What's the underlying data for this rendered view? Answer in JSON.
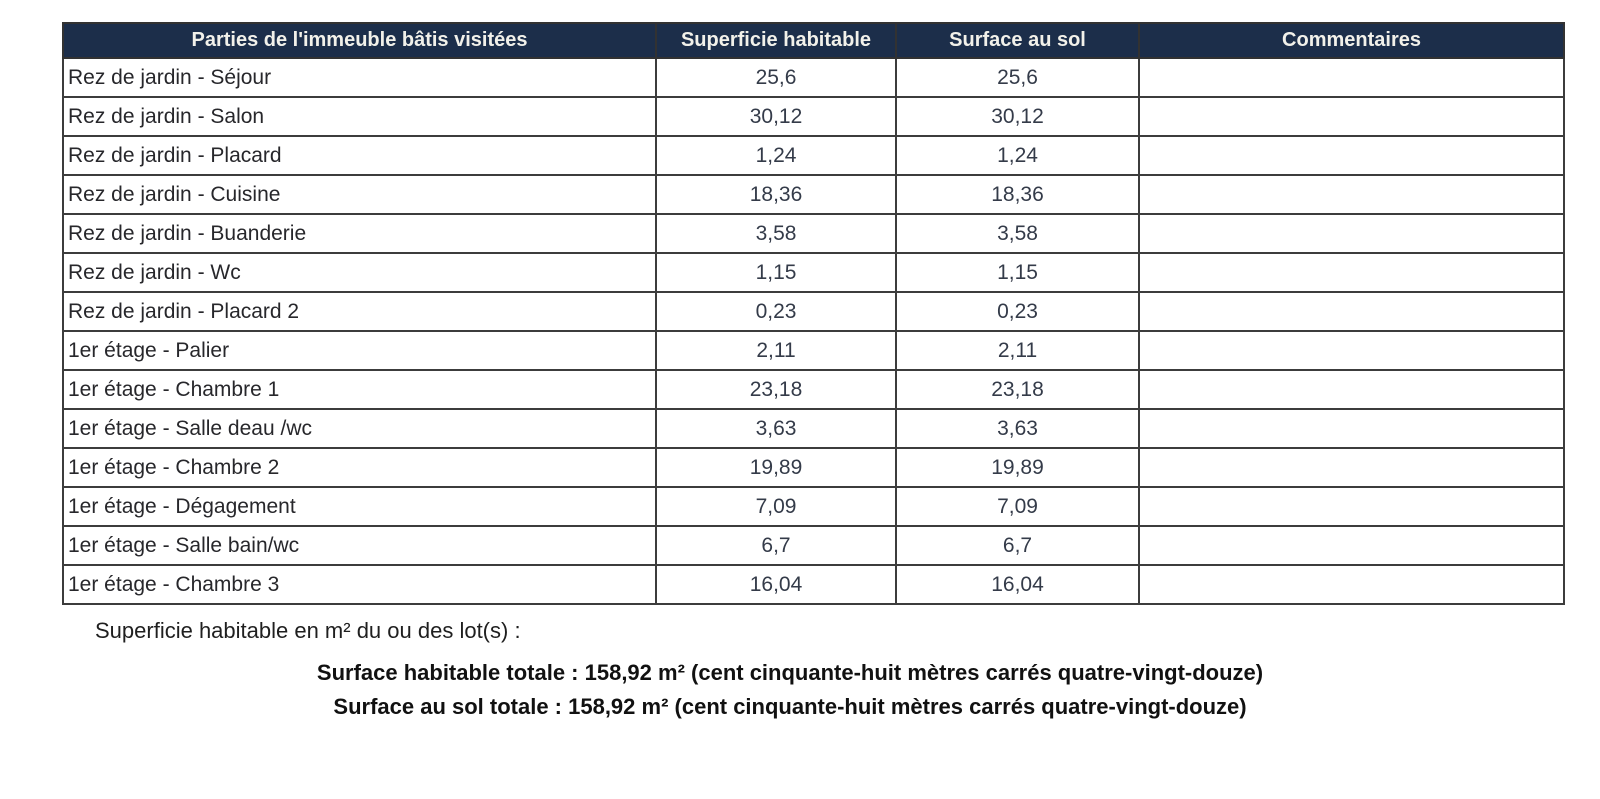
{
  "table": {
    "columns": [
      {
        "label": "Parties de l'immeuble bâtis visitées"
      },
      {
        "label": "Superficie habitable"
      },
      {
        "label": "Surface au sol"
      },
      {
        "label": "Commentaires"
      }
    ],
    "rows": [
      {
        "part": "Rez de jardin - Séjour",
        "superficie": "25,6",
        "surface_sol": "25,6",
        "comment": ""
      },
      {
        "part": "Rez de jardin - Salon",
        "superficie": "30,12",
        "surface_sol": "30,12",
        "comment": ""
      },
      {
        "part": "Rez de jardin - Placard",
        "superficie": "1,24",
        "surface_sol": "1,24",
        "comment": ""
      },
      {
        "part": "Rez de jardin - Cuisine",
        "superficie": "18,36",
        "surface_sol": "18,36",
        "comment": ""
      },
      {
        "part": "Rez de jardin - Buanderie",
        "superficie": "3,58",
        "surface_sol": "3,58",
        "comment": ""
      },
      {
        "part": "Rez de jardin - Wc",
        "superficie": "1,15",
        "surface_sol": "1,15",
        "comment": ""
      },
      {
        "part": "Rez de jardin - Placard 2",
        "superficie": "0,23",
        "surface_sol": "0,23",
        "comment": ""
      },
      {
        "part": "1er étage - Palier",
        "superficie": "2,11",
        "surface_sol": "2,11",
        "comment": ""
      },
      {
        "part": "1er étage - Chambre 1",
        "superficie": "23,18",
        "surface_sol": "23,18",
        "comment": ""
      },
      {
        "part": "1er étage - Salle deau /wc",
        "superficie": "3,63",
        "surface_sol": "3,63",
        "comment": ""
      },
      {
        "part": "1er étage - Chambre 2",
        "superficie": "19,89",
        "surface_sol": "19,89",
        "comment": ""
      },
      {
        "part": "1er étage - Dégagement",
        "superficie": "7,09",
        "surface_sol": "7,09",
        "comment": ""
      },
      {
        "part": "1er étage - Salle bain/wc",
        "superficie": "6,7",
        "surface_sol": "6,7",
        "comment": ""
      },
      {
        "part": "1er étage - Chambre 3",
        "superficie": "16,04",
        "surface_sol": "16,04",
        "comment": ""
      }
    ]
  },
  "notes": {
    "intro": "Superficie habitable en m² du ou des lot(s) :",
    "total_habitable": "Surface habitable totale : 158,92 m² (cent cinquante-huit mètres carrés quatre-vingt-douze)",
    "total_sol": "Surface au sol totale : 158,92 m² (cent cinquante-huit mètres carrés quatre-vingt-douze)"
  },
  "colors": {
    "header_bg": "#1c2e4a",
    "header_text": "#f2f1ea",
    "border": "#3c3c3c",
    "label_text": "#27272b",
    "value_text": "#343b49"
  }
}
